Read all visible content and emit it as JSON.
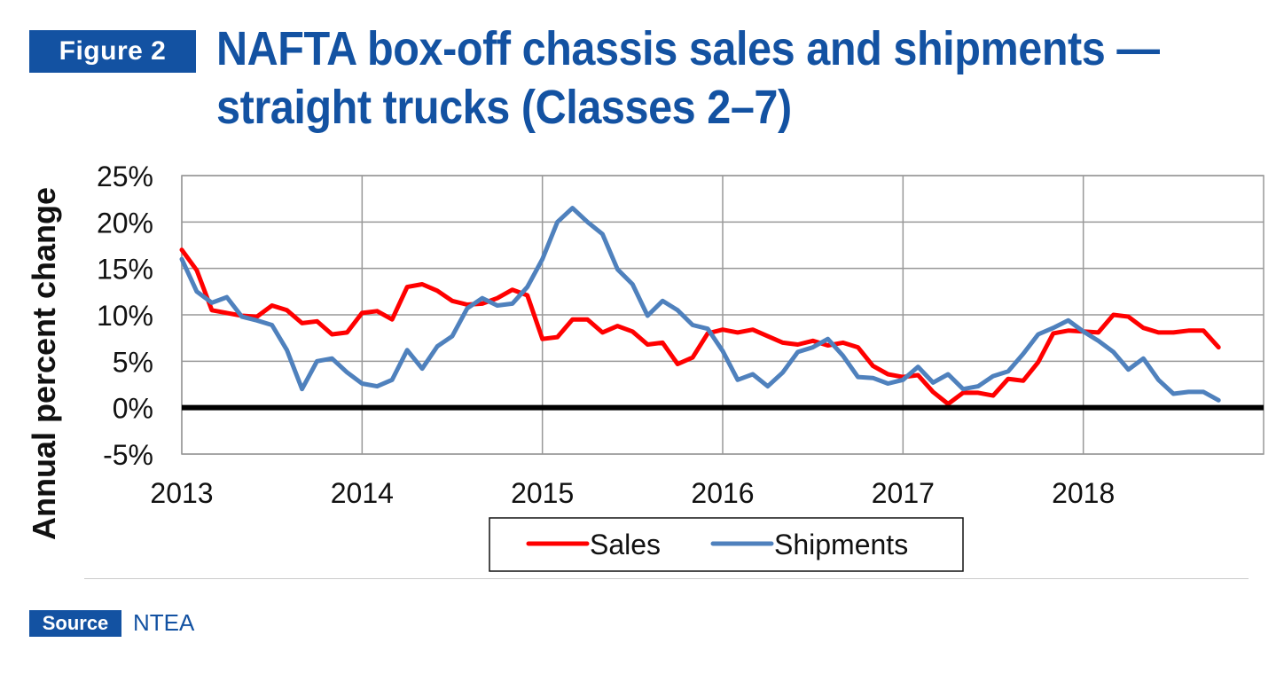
{
  "figure_label": "Figure 2",
  "title": "NAFTA box-off chassis sales and shipments — straight trucks (Classes 2–7)",
  "source_label": "Source",
  "source_value": "NTEA",
  "colors": {
    "accent": "#1352a2",
    "sales": "#ff0000",
    "shipments": "#4f81bd",
    "zero_line": "#000000",
    "grid": "#999999"
  },
  "chart_data": {
    "type": "line",
    "ylabel": "Annual percent change",
    "xlabel": "",
    "ylim": [
      -5,
      25
    ],
    "xlim": [
      2013,
      2019
    ],
    "yticks": [
      25,
      20,
      15,
      10,
      5,
      0,
      -5
    ],
    "ytick_labels": [
      "25%",
      "20%",
      "15%",
      "10%",
      "5%",
      "0%",
      "-5%"
    ],
    "xticks": [
      2013,
      2014,
      2015,
      2016,
      2017,
      2018
    ],
    "xtick_labels": [
      "2013",
      "2014",
      "2015",
      "2016",
      "2017",
      "2018"
    ],
    "grid": true,
    "legend_position": "bottom",
    "x_start_year": 2013,
    "x_step_months": 1,
    "series": [
      {
        "name": "Sales",
        "color": "#ff0000",
        "values": [
          17.0,
          14.8,
          10.5,
          10.2,
          9.9,
          9.8,
          11.0,
          10.5,
          9.1,
          9.3,
          7.9,
          8.1,
          10.2,
          10.4,
          9.5,
          13.0,
          13.3,
          12.6,
          11.5,
          11.1,
          11.2,
          11.8,
          12.7,
          12.1,
          7.4,
          7.6,
          9.5,
          9.5,
          8.1,
          8.8,
          8.2,
          6.8,
          7.0,
          4.7,
          5.4,
          8.0,
          8.4,
          8.1,
          8.4,
          7.7,
          7.0,
          6.8,
          7.2,
          6.7,
          7.0,
          6.5,
          4.5,
          3.6,
          3.3,
          3.5,
          1.7,
          0.4,
          1.6,
          1.6,
          1.3,
          3.1,
          2.9,
          4.9,
          8.0,
          8.3,
          8.2,
          8.1,
          10.0,
          9.8,
          8.6,
          8.1,
          8.1,
          8.3,
          8.3,
          6.5
        ]
      },
      {
        "name": "Shipments",
        "color": "#4f81bd",
        "values": [
          16.0,
          12.5,
          11.3,
          11.9,
          9.8,
          9.4,
          8.9,
          6.2,
          2.0,
          5.0,
          5.3,
          3.8,
          2.6,
          2.3,
          3.0,
          6.2,
          4.2,
          6.6,
          7.7,
          10.7,
          11.8,
          11.0,
          11.2,
          13.0,
          16.0,
          20.0,
          21.5,
          20.0,
          18.7,
          14.9,
          13.3,
          9.9,
          11.5,
          10.5,
          8.9,
          8.5,
          6.1,
          3.0,
          3.6,
          2.3,
          3.8,
          6.0,
          6.5,
          7.4,
          5.6,
          3.3,
          3.2,
          2.6,
          3.0,
          4.4,
          2.7,
          3.6,
          2.0,
          2.3,
          3.4,
          3.9,
          5.8,
          7.9,
          8.6,
          9.4,
          8.2,
          7.2,
          6.0,
          4.1,
          5.3,
          3.0,
          1.5,
          1.7,
          1.7,
          0.8
        ]
      }
    ]
  }
}
